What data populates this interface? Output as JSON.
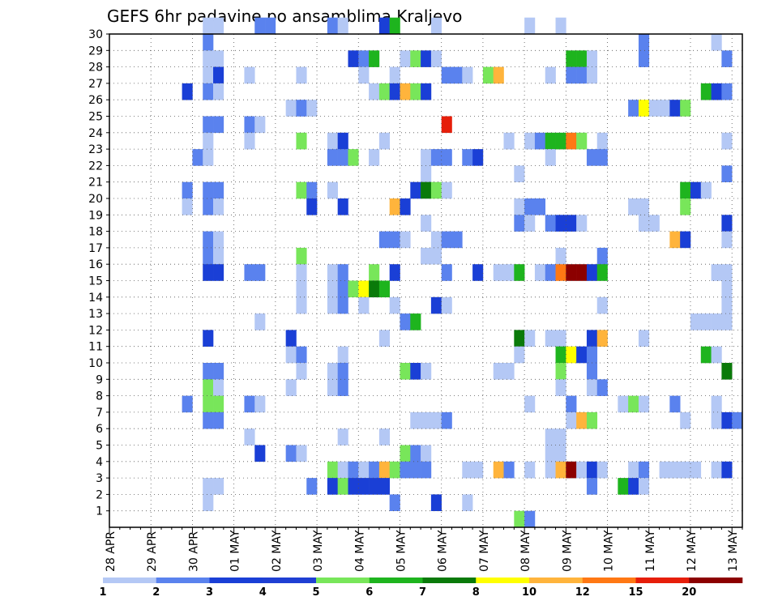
{
  "chart_data": {
    "type": "heatmap",
    "title": "GEFS 6hr padavine po ansamblima Kraljevo",
    "xlabel": "",
    "ylabel": "",
    "x_tick_labels": [
      "28 APR",
      "29 APR",
      "30 APR",
      "01 MAY",
      "02 MAY",
      "03 MAY",
      "04 MAY",
      "05 MAY",
      "06 MAY",
      "07 MAY",
      "08 MAY",
      "09 MAY",
      "10 MAY",
      "11 MAY",
      "12 MAY",
      "13 MAY"
    ],
    "y_tick_labels": [
      "1",
      "2",
      "3",
      "4",
      "5",
      "6",
      "7",
      "8",
      "9",
      "10",
      "11",
      "12",
      "13",
      "14",
      "15",
      "16",
      "17",
      "18",
      "19",
      "20",
      "21",
      "22",
      "23",
      "24",
      "25",
      "26",
      "27",
      "28",
      "29",
      "30"
    ],
    "time_steps": 61,
    "members": 30,
    "grid": "dotted",
    "legend_position": "bottom",
    "legend": {
      "labels": [
        "1",
        "2",
        "3",
        "4",
        "5",
        "6",
        "7",
        "8",
        "10",
        "12",
        "15",
        "20"
      ],
      "colors": [
        "#b4c8f5",
        "#5a82ee",
        "#1a3fd6",
        "#1f3fd3",
        "#78e65a",
        "#1eb41e",
        "#0a7a0a",
        "#ffff00",
        "#ffb43c",
        "#ff7814",
        "#e61e0a",
        "#8c0000"
      ]
    },
    "cells": [
      [
        30,
        9,
        1
      ],
      [
        30,
        10,
        1
      ],
      [
        30,
        14,
        2
      ],
      [
        30,
        15,
        2
      ],
      [
        30,
        21,
        2
      ],
      [
        30,
        22,
        1
      ],
      [
        30,
        26,
        3
      ],
      [
        30,
        27,
        6
      ],
      [
        30,
        31,
        1
      ],
      [
        30,
        40,
        1
      ],
      [
        30,
        43,
        1
      ],
      [
        29,
        9,
        2
      ],
      [
        29,
        51,
        2
      ],
      [
        29,
        58,
        1
      ],
      [
        28,
        9,
        1
      ],
      [
        28,
        10,
        1
      ],
      [
        28,
        23,
        3
      ],
      [
        28,
        24,
        2
      ],
      [
        28,
        25,
        6
      ],
      [
        28,
        28,
        1
      ],
      [
        28,
        29,
        5
      ],
      [
        28,
        30,
        3
      ],
      [
        28,
        31,
        1
      ],
      [
        28,
        44,
        6
      ],
      [
        28,
        45,
        6
      ],
      [
        28,
        46,
        1
      ],
      [
        28,
        51,
        2
      ],
      [
        28,
        59,
        2
      ],
      [
        27,
        9,
        1
      ],
      [
        27,
        10,
        3
      ],
      [
        27,
        13,
        1
      ],
      [
        27,
        18,
        1
      ],
      [
        27,
        24,
        1
      ],
      [
        27,
        27,
        1
      ],
      [
        27,
        32,
        2
      ],
      [
        27,
        33,
        2
      ],
      [
        27,
        34,
        1
      ],
      [
        27,
        36,
        5
      ],
      [
        27,
        37,
        9
      ],
      [
        27,
        42,
        1
      ],
      [
        27,
        44,
        2
      ],
      [
        27,
        45,
        2
      ],
      [
        27,
        46,
        1
      ],
      [
        26,
        7,
        3
      ],
      [
        26,
        9,
        2
      ],
      [
        26,
        10,
        1
      ],
      [
        26,
        25,
        1
      ],
      [
        26,
        26,
        5
      ],
      [
        26,
        27,
        3
      ],
      [
        26,
        28,
        9
      ],
      [
        26,
        29,
        5
      ],
      [
        26,
        30,
        3
      ],
      [
        26,
        57,
        6
      ],
      [
        26,
        58,
        3
      ],
      [
        26,
        59,
        2
      ],
      [
        25,
        17,
        1
      ],
      [
        25,
        18,
        2
      ],
      [
        25,
        19,
        1
      ],
      [
        25,
        50,
        2
      ],
      [
        25,
        51,
        8
      ],
      [
        25,
        52,
        1
      ],
      [
        25,
        53,
        1
      ],
      [
        25,
        54,
        3
      ],
      [
        25,
        55,
        5
      ],
      [
        24,
        9,
        2
      ],
      [
        24,
        10,
        2
      ],
      [
        24,
        13,
        2
      ],
      [
        24,
        14,
        1
      ],
      [
        24,
        32,
        11
      ],
      [
        23,
        9,
        1
      ],
      [
        23,
        13,
        1
      ],
      [
        23,
        18,
        5
      ],
      [
        23,
        21,
        1
      ],
      [
        23,
        22,
        3
      ],
      [
        23,
        26,
        1
      ],
      [
        23,
        38,
        1
      ],
      [
        23,
        40,
        1
      ],
      [
        23,
        41,
        2
      ],
      [
        23,
        42,
        6
      ],
      [
        23,
        43,
        6
      ],
      [
        23,
        44,
        10
      ],
      [
        23,
        45,
        5
      ],
      [
        23,
        47,
        1
      ],
      [
        23,
        59,
        1
      ],
      [
        22,
        8,
        2
      ],
      [
        22,
        9,
        1
      ],
      [
        22,
        21,
        2
      ],
      [
        22,
        22,
        2
      ],
      [
        22,
        23,
        5
      ],
      [
        22,
        25,
        1
      ],
      [
        22,
        30,
        1
      ],
      [
        22,
        31,
        2
      ],
      [
        22,
        32,
        2
      ],
      [
        22,
        34,
        2
      ],
      [
        22,
        35,
        3
      ],
      [
        22,
        42,
        1
      ],
      [
        22,
        46,
        2
      ],
      [
        22,
        47,
        2
      ],
      [
        21,
        30,
        1
      ],
      [
        21,
        39,
        1
      ],
      [
        21,
        59,
        2
      ],
      [
        20,
        7,
        2
      ],
      [
        20,
        9,
        2
      ],
      [
        20,
        10,
        2
      ],
      [
        20,
        18,
        5
      ],
      [
        20,
        19,
        2
      ],
      [
        20,
        21,
        1
      ],
      [
        20,
        29,
        3
      ],
      [
        20,
        30,
        7
      ],
      [
        20,
        31,
        5
      ],
      [
        20,
        32,
        1
      ],
      [
        20,
        55,
        6
      ],
      [
        20,
        56,
        3
      ],
      [
        20,
        57,
        1
      ],
      [
        19,
        7,
        1
      ],
      [
        19,
        9,
        2
      ],
      [
        19,
        10,
        1
      ],
      [
        19,
        19,
        3
      ],
      [
        19,
        22,
        3
      ],
      [
        19,
        27,
        9
      ],
      [
        19,
        28,
        3
      ],
      [
        19,
        39,
        1
      ],
      [
        19,
        40,
        2
      ],
      [
        19,
        41,
        2
      ],
      [
        19,
        50,
        1
      ],
      [
        19,
        51,
        1
      ],
      [
        19,
        55,
        5
      ],
      [
        18,
        30,
        1
      ],
      [
        18,
        39,
        2
      ],
      [
        18,
        40,
        1
      ],
      [
        18,
        42,
        2
      ],
      [
        18,
        43,
        3
      ],
      [
        18,
        44,
        3
      ],
      [
        18,
        45,
        1
      ],
      [
        18,
        51,
        1
      ],
      [
        18,
        52,
        1
      ],
      [
        18,
        59,
        3
      ],
      [
        17,
        9,
        2
      ],
      [
        17,
        10,
        1
      ],
      [
        17,
        26,
        2
      ],
      [
        17,
        27,
        2
      ],
      [
        17,
        28,
        1
      ],
      [
        17,
        31,
        1
      ],
      [
        17,
        32,
        2
      ],
      [
        17,
        33,
        2
      ],
      [
        17,
        54,
        9
      ],
      [
        17,
        55,
        3
      ],
      [
        17,
        59,
        1
      ],
      [
        16,
        9,
        2
      ],
      [
        16,
        10,
        1
      ],
      [
        16,
        18,
        5
      ],
      [
        16,
        30,
        1
      ],
      [
        16,
        31,
        1
      ],
      [
        16,
        43,
        1
      ],
      [
        16,
        47,
        2
      ],
      [
        15,
        9,
        3
      ],
      [
        15,
        10,
        3
      ],
      [
        15,
        13,
        2
      ],
      [
        15,
        14,
        2
      ],
      [
        15,
        18,
        1
      ],
      [
        15,
        21,
        1
      ],
      [
        15,
        22,
        2
      ],
      [
        15,
        25,
        5
      ],
      [
        15,
        27,
        3
      ],
      [
        15,
        32,
        2
      ],
      [
        15,
        35,
        3
      ],
      [
        15,
        37,
        1
      ],
      [
        15,
        38,
        1
      ],
      [
        15,
        39,
        6
      ],
      [
        15,
        41,
        1
      ],
      [
        15,
        42,
        2
      ],
      [
        15,
        43,
        10
      ],
      [
        15,
        44,
        12
      ],
      [
        15,
        45,
        12
      ],
      [
        15,
        46,
        3
      ],
      [
        15,
        47,
        6
      ],
      [
        15,
        58,
        1
      ],
      [
        15,
        59,
        1
      ],
      [
        14,
        18,
        1
      ],
      [
        14,
        21,
        1
      ],
      [
        14,
        22,
        2
      ],
      [
        14,
        23,
        5
      ],
      [
        14,
        24,
        8
      ],
      [
        14,
        25,
        7
      ],
      [
        14,
        26,
        6
      ],
      [
        14,
        59,
        1
      ],
      [
        13,
        18,
        1
      ],
      [
        13,
        21,
        1
      ],
      [
        13,
        22,
        2
      ],
      [
        13,
        24,
        1
      ],
      [
        13,
        27,
        1
      ],
      [
        13,
        31,
        3
      ],
      [
        13,
        32,
        1
      ],
      [
        13,
        47,
        1
      ],
      [
        13,
        59,
        1
      ],
      [
        12,
        14,
        1
      ],
      [
        12,
        28,
        2
      ],
      [
        12,
        29,
        6
      ],
      [
        12,
        56,
        1
      ],
      [
        12,
        57,
        1
      ],
      [
        12,
        58,
        1
      ],
      [
        12,
        59,
        1
      ],
      [
        11,
        9,
        3
      ],
      [
        11,
        17,
        3
      ],
      [
        11,
        26,
        1
      ],
      [
        11,
        39,
        7
      ],
      [
        11,
        40,
        1
      ],
      [
        11,
        42,
        1
      ],
      [
        11,
        43,
        1
      ],
      [
        11,
        46,
        3
      ],
      [
        11,
        47,
        9
      ],
      [
        11,
        51,
        1
      ],
      [
        10,
        17,
        1
      ],
      [
        10,
        18,
        2
      ],
      [
        10,
        22,
        1
      ],
      [
        10,
        39,
        1
      ],
      [
        10,
        43,
        6
      ],
      [
        10,
        44,
        8
      ],
      [
        10,
        45,
        3
      ],
      [
        10,
        46,
        2
      ],
      [
        10,
        57,
        6
      ],
      [
        10,
        58,
        1
      ],
      [
        9,
        9,
        2
      ],
      [
        9,
        10,
        2
      ],
      [
        9,
        18,
        1
      ],
      [
        9,
        21,
        1
      ],
      [
        9,
        22,
        2
      ],
      [
        9,
        28,
        5
      ],
      [
        9,
        29,
        3
      ],
      [
        9,
        30,
        1
      ],
      [
        9,
        37,
        1
      ],
      [
        9,
        38,
        1
      ],
      [
        9,
        43,
        5
      ],
      [
        9,
        46,
        2
      ],
      [
        9,
        59,
        7
      ],
      [
        8,
        9,
        5
      ],
      [
        8,
        10,
        1
      ],
      [
        8,
        17,
        1
      ],
      [
        8,
        21,
        1
      ],
      [
        8,
        22,
        2
      ],
      [
        8,
        43,
        1
      ],
      [
        8,
        46,
        1
      ],
      [
        8,
        47,
        2
      ],
      [
        7,
        7,
        2
      ],
      [
        7,
        9,
        5
      ],
      [
        7,
        10,
        5
      ],
      [
        7,
        13,
        2
      ],
      [
        7,
        14,
        1
      ],
      [
        7,
        40,
        1
      ],
      [
        7,
        44,
        2
      ],
      [
        7,
        49,
        1
      ],
      [
        7,
        50,
        5
      ],
      [
        7,
        51,
        1
      ],
      [
        7,
        54,
        2
      ],
      [
        7,
        58,
        1
      ],
      [
        6,
        9,
        2
      ],
      [
        6,
        10,
        2
      ],
      [
        6,
        29,
        1
      ],
      [
        6,
        30,
        1
      ],
      [
        6,
        31,
        1
      ],
      [
        6,
        32,
        2
      ],
      [
        6,
        44,
        1
      ],
      [
        6,
        45,
        9
      ],
      [
        6,
        46,
        5
      ],
      [
        6,
        55,
        1
      ],
      [
        6,
        58,
        1
      ],
      [
        6,
        59,
        3
      ],
      [
        6,
        60,
        2
      ],
      [
        5,
        13,
        1
      ],
      [
        5,
        22,
        1
      ],
      [
        5,
        26,
        1
      ],
      [
        5,
        42,
        1
      ],
      [
        5,
        43,
        1
      ],
      [
        4,
        14,
        3
      ],
      [
        4,
        17,
        2
      ],
      [
        4,
        18,
        1
      ],
      [
        4,
        28,
        5
      ],
      [
        4,
        29,
        2
      ],
      [
        4,
        30,
        1
      ],
      [
        4,
        42,
        1
      ],
      [
        4,
        43,
        1
      ],
      [
        3,
        21,
        5
      ],
      [
        3,
        22,
        1
      ],
      [
        3,
        23,
        2
      ],
      [
        3,
        24,
        1
      ],
      [
        3,
        25,
        2
      ],
      [
        3,
        26,
        9
      ],
      [
        3,
        27,
        5
      ],
      [
        3,
        28,
        2
      ],
      [
        3,
        29,
        2
      ],
      [
        3,
        30,
        2
      ],
      [
        3,
        34,
        1
      ],
      [
        3,
        35,
        1
      ],
      [
        3,
        37,
        9
      ],
      [
        3,
        38,
        2
      ],
      [
        3,
        40,
        1
      ],
      [
        3,
        42,
        1
      ],
      [
        3,
        43,
        9
      ],
      [
        3,
        44,
        12
      ],
      [
        3,
        45,
        1
      ],
      [
        3,
        46,
        3
      ],
      [
        3,
        47,
        1
      ],
      [
        3,
        50,
        1
      ],
      [
        3,
        51,
        2
      ],
      [
        3,
        53,
        1
      ],
      [
        3,
        54,
        1
      ],
      [
        3,
        55,
        1
      ],
      [
        3,
        56,
        1
      ],
      [
        3,
        58,
        1
      ],
      [
        3,
        59,
        3
      ],
      [
        2,
        9,
        1
      ],
      [
        2,
        10,
        1
      ],
      [
        2,
        19,
        2
      ],
      [
        2,
        21,
        3
      ],
      [
        2,
        22,
        5
      ],
      [
        2,
        23,
        3
      ],
      [
        2,
        24,
        3
      ],
      [
        2,
        25,
        3
      ],
      [
        2,
        26,
        3
      ],
      [
        2,
        46,
        2
      ],
      [
        2,
        49,
        6
      ],
      [
        2,
        50,
        3
      ],
      [
        2,
        51,
        1
      ],
      [
        1,
        9,
        1
      ],
      [
        1,
        27,
        2
      ],
      [
        1,
        31,
        3
      ],
      [
        1,
        34,
        1
      ],
      [
        0,
        39,
        5
      ],
      [
        0,
        40,
        2
      ]
    ]
  }
}
